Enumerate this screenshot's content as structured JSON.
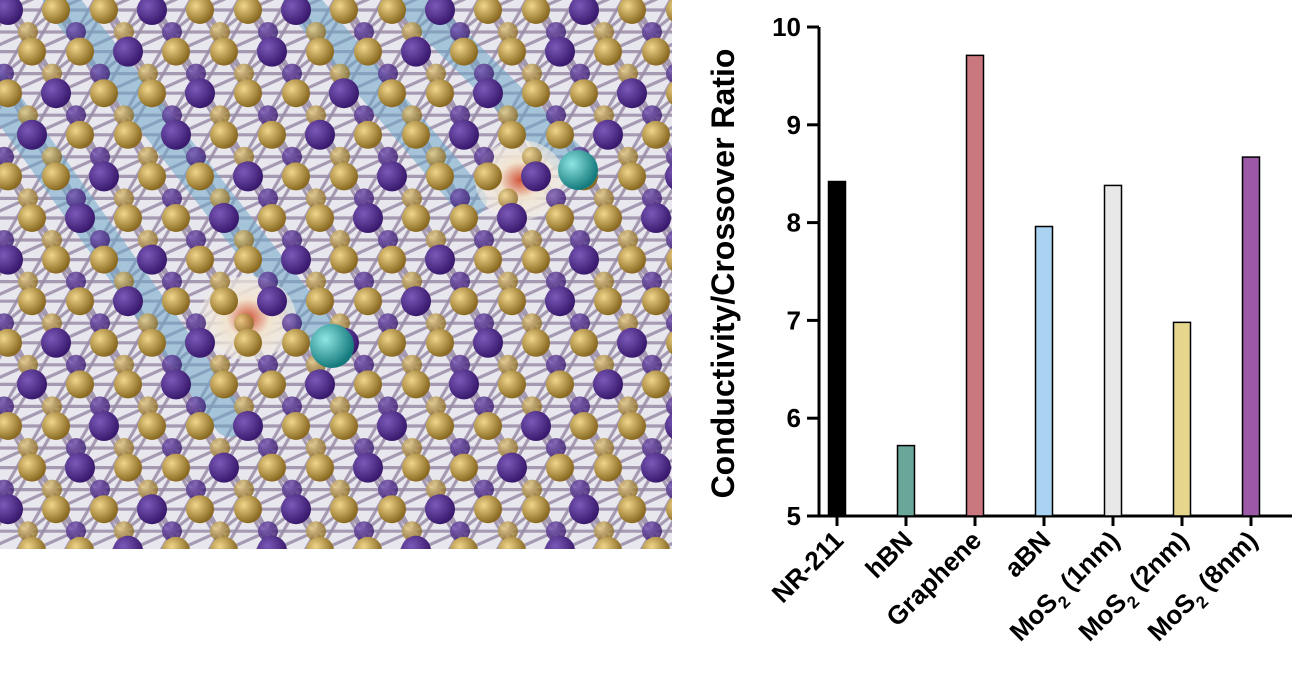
{
  "figure": {
    "left_panel": {
      "description_icon": "atomic-lattice-illustration",
      "atom_colors": {
        "bond": "#9a8da8",
        "metal_atom": "#3a1a6e",
        "chalcogen_atom": "#b8923a",
        "channel": "#6fa9c9",
        "ion": "#2aa3a6",
        "pore": "#e8e2d6"
      }
    },
    "chart_data": {
      "type": "bar",
      "categories": [
        "NR-211",
        "hBN",
        "Graphene",
        "aBN",
        "MoS2 (1nm)",
        "MoS2 (2nm)",
        "MoS2 (8nm)"
      ],
      "category_labels": [
        {
          "main": "NR-211",
          "sub": "",
          "tail": ""
        },
        {
          "main": "hBN",
          "sub": "",
          "tail": ""
        },
        {
          "main": "Graphene",
          "sub": "",
          "tail": ""
        },
        {
          "main": "aBN",
          "sub": "",
          "tail": ""
        },
        {
          "main": "MoS",
          "sub": "2",
          "tail": " (1nm)"
        },
        {
          "main": "MoS",
          "sub": "2",
          "tail": " (2nm)"
        },
        {
          "main": "MoS",
          "sub": "2",
          "tail": " (8nm)"
        }
      ],
      "values": [
        8.42,
        5.72,
        9.71,
        7.96,
        8.38,
        6.98,
        8.67
      ],
      "colors": [
        "#000000",
        "#6aa69a",
        "#c9787f",
        "#a9d3f1",
        "#e8e8e8",
        "#e6d58c",
        "#9b59a6"
      ],
      "ylabel": "Conductivity/Crossover Ratio",
      "xlabel": "",
      "title": "",
      "ylim": [
        5,
        10
      ],
      "yticks": [
        5,
        6,
        7,
        8,
        9,
        10
      ],
      "grid": false,
      "legend": "none"
    }
  }
}
